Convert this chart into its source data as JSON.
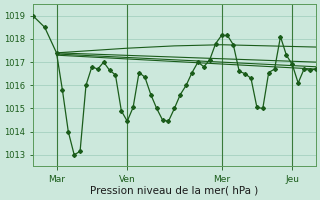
{
  "bg_color": "#cce8dc",
  "grid_color": "#aad4c4",
  "line_color": "#1a5c1a",
  "xlabel": "Pression niveau de la mer( hPa )",
  "xlabel_fontsize": 7.5,
  "yticks": [
    1013,
    1014,
    1015,
    1016,
    1017,
    1018,
    1019
  ],
  "ytick_fontsize": 6,
  "xtick_fontsize": 6.5,
  "ylim": [
    1012.5,
    1019.5
  ],
  "xtick_labels": [
    "Mar",
    "Ven",
    "Mer",
    "Jeu"
  ],
  "xtick_positions": [
    8,
    32,
    64,
    88
  ],
  "xlim": [
    0,
    96
  ],
  "vline_color": "#3a7a3a",
  "series": [
    {
      "x": [
        0,
        4,
        8,
        10,
        12,
        14,
        16,
        18,
        20,
        22,
        24,
        26,
        28,
        30,
        32,
        34,
        36,
        38,
        40,
        42,
        44,
        46,
        48,
        50,
        52,
        54,
        56,
        58,
        60,
        62,
        64,
        66,
        68,
        70,
        72,
        74,
        76,
        78,
        80,
        82,
        84,
        86,
        88,
        90,
        92,
        94,
        96
      ],
      "y": [
        1019.0,
        1018.5,
        1017.4,
        1015.8,
        1014.0,
        1013.0,
        1013.15,
        1016.0,
        1016.8,
        1016.7,
        1017.0,
        1016.65,
        1016.45,
        1014.9,
        1014.45,
        1015.05,
        1016.55,
        1016.35,
        1015.6,
        1015.0,
        1014.5,
        1014.45,
        1015.0,
        1015.6,
        1016.0,
        1016.55,
        1017.0,
        1016.8,
        1017.1,
        1017.8,
        1018.15,
        1018.15,
        1017.75,
        1016.6,
        1016.5,
        1016.3,
        1015.05,
        1015.0,
        1016.55,
        1016.7,
        1018.1,
        1017.3,
        1016.9,
        1016.1,
        1016.7,
        1016.65,
        1016.7
      ],
      "marker": "D",
      "markersize": 2.0,
      "linewidth": 0.9,
      "zorder": 5
    },
    {
      "x": [
        8,
        96
      ],
      "y": [
        1017.4,
        1017.0
      ],
      "marker": null,
      "linewidth": 0.8,
      "zorder": 3
    },
    {
      "x": [
        8,
        96
      ],
      "y": [
        1017.35,
        1016.8
      ],
      "marker": null,
      "linewidth": 0.8,
      "zorder": 3
    },
    {
      "x": [
        8,
        96
      ],
      "y": [
        1017.3,
        1016.7
      ],
      "marker": null,
      "linewidth": 0.8,
      "zorder": 3
    },
    {
      "x": [
        8,
        20,
        32,
        48,
        64,
        80,
        96
      ],
      "y": [
        1017.4,
        1017.5,
        1017.6,
        1017.7,
        1017.75,
        1017.7,
        1017.65
      ],
      "marker": null,
      "linewidth": 0.8,
      "zorder": 3
    }
  ]
}
